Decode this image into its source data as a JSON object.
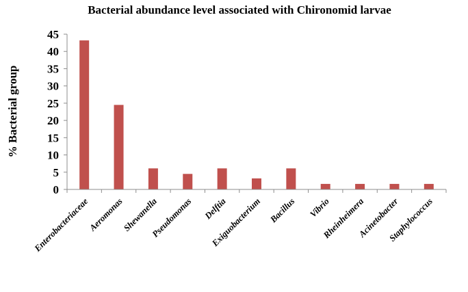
{
  "chart_data": {
    "type": "bar",
    "title": "Bacterial abundance  level associated with  Chironomid  larvae",
    "xlabel": "",
    "ylabel": "% Bacterial group",
    "ylim": [
      0,
      45
    ],
    "yticks": [
      "0",
      "5",
      "10",
      "15",
      "20",
      "25",
      "30",
      "35",
      "40",
      "45"
    ],
    "grid": false,
    "legend": "none",
    "bar_color": "#c0504d",
    "categories": [
      "Enterobacteriaceae",
      "Aeromonas",
      "Shewanella",
      "Pseudomonas",
      "Delftia",
      "Exiguobacterium",
      "Bacillus",
      "Vibrio",
      "Rheinheimera",
      "Acinetobacter",
      "Staphylococcus"
    ],
    "values": [
      43.2,
      24.5,
      6.1,
      4.5,
      6.1,
      3.2,
      6.1,
      1.6,
      1.6,
      1.6,
      1.6
    ]
  }
}
